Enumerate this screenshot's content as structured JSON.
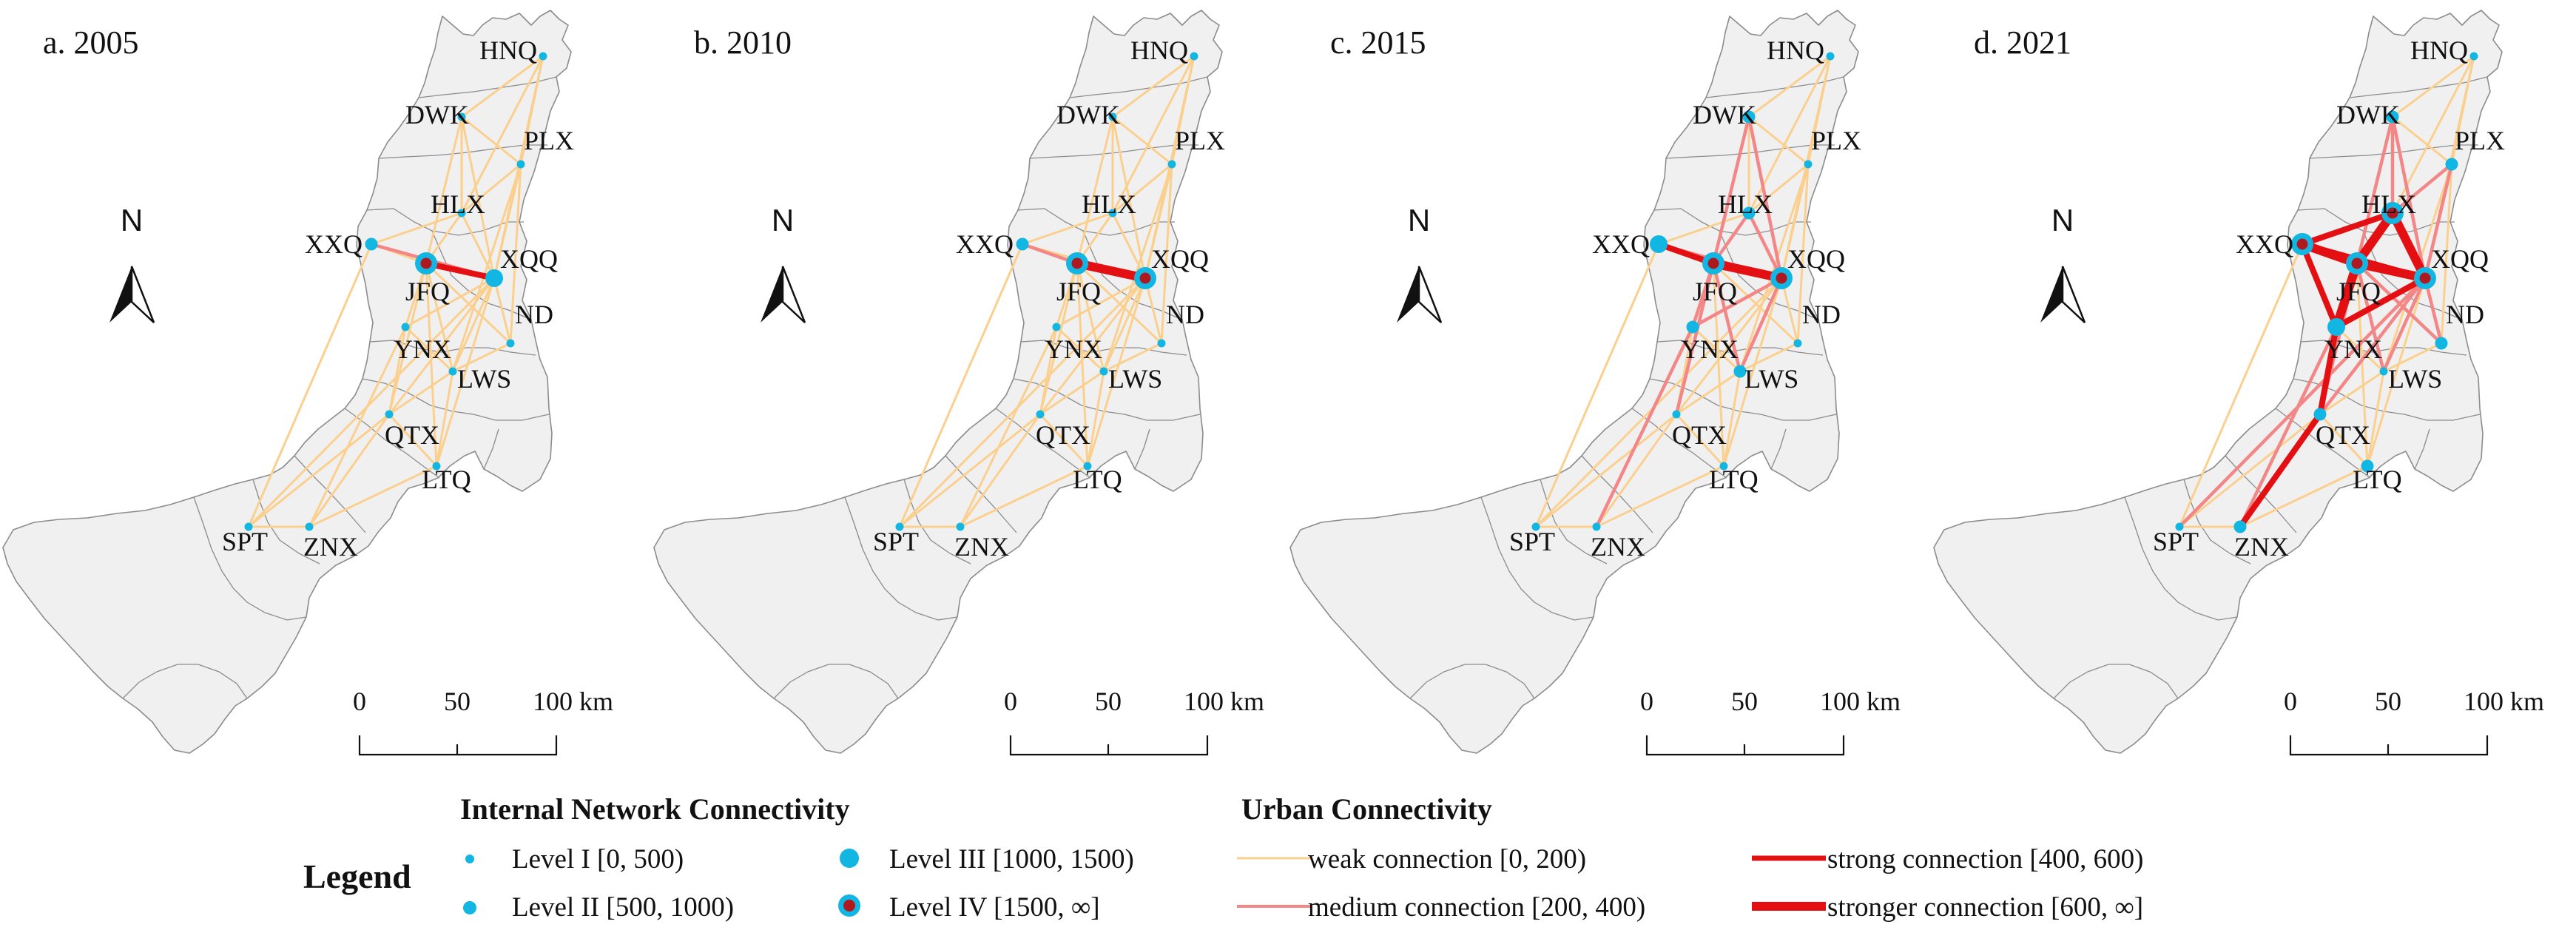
{
  "panels": [
    {
      "title": "a. 2005",
      "edges": [
        [
          "HNQ",
          "DWK",
          1
        ],
        [
          "HNQ",
          "PLX",
          1
        ],
        [
          "HNQ",
          "HLX",
          1
        ],
        [
          "HNQ",
          "XQQ",
          1
        ],
        [
          "DWK",
          "PLX",
          1
        ],
        [
          "DWK",
          "HLX",
          1
        ],
        [
          "DWK",
          "XQQ",
          1
        ],
        [
          "DWK",
          "JFQ",
          1
        ],
        [
          "PLX",
          "HLX",
          1
        ],
        [
          "PLX",
          "XQQ",
          1
        ],
        [
          "PLX",
          "ND",
          1
        ],
        [
          "PLX",
          "LWS",
          1
        ],
        [
          "HLX",
          "XQQ",
          1
        ],
        [
          "HLX",
          "JFQ",
          1
        ],
        [
          "HLX",
          "XXQ",
          1
        ],
        [
          "XXQ",
          "JFQ",
          1
        ],
        [
          "XXQ",
          "SPT",
          1
        ],
        [
          "JFQ",
          "XQQ",
          3
        ],
        [
          "JFQ",
          "YNX",
          1
        ],
        [
          "JFQ",
          "ND",
          1
        ],
        [
          "JFQ",
          "LWS",
          1
        ],
        [
          "JFQ",
          "QTX",
          1
        ],
        [
          "XQQ",
          "ND",
          1
        ],
        [
          "XQQ",
          "YNX",
          1
        ],
        [
          "XQQ",
          "LWS",
          1
        ],
        [
          "XQQ",
          "QTX",
          1
        ],
        [
          "XQQ",
          "LTQ",
          1
        ],
        [
          "XQQ",
          "SPT",
          1
        ],
        [
          "YNX",
          "LWS",
          1
        ],
        [
          "YNX",
          "QTX",
          1
        ],
        [
          "YNX",
          "ZNX",
          1
        ],
        [
          "LWS",
          "QTX",
          1
        ],
        [
          "LWS",
          "LTQ",
          1
        ],
        [
          "LWS",
          "ND",
          1
        ],
        [
          "QTX",
          "LTQ",
          1
        ],
        [
          "QTX",
          "ZNX",
          1
        ],
        [
          "QTX",
          "SPT",
          1
        ],
        [
          "LTQ",
          "ZNX",
          1
        ],
        [
          "ZNX",
          "SPT",
          1
        ],
        [
          "JFQ",
          "LTQ",
          1
        ],
        [
          "XXQ",
          "XQQ",
          2
        ]
      ],
      "levels": {
        "HNQ": 1,
        "DWK": 1,
        "PLX": 1,
        "HLX": 1,
        "XXQ": 2,
        "JFQ": 4,
        "XQQ": 3,
        "ND": 1,
        "YNX": 1,
        "LWS": 1,
        "QTX": 1,
        "LTQ": 1,
        "SPT": 1,
        "ZNX": 1
      }
    },
    {
      "title": "b. 2010",
      "edges": [
        [
          "HNQ",
          "DWK",
          1
        ],
        [
          "HNQ",
          "PLX",
          1
        ],
        [
          "HNQ",
          "HLX",
          1
        ],
        [
          "HNQ",
          "XQQ",
          1
        ],
        [
          "DWK",
          "PLX",
          1
        ],
        [
          "DWK",
          "HLX",
          1
        ],
        [
          "DWK",
          "XQQ",
          1
        ],
        [
          "DWK",
          "JFQ",
          1
        ],
        [
          "PLX",
          "HLX",
          1
        ],
        [
          "PLX",
          "XQQ",
          1
        ],
        [
          "PLX",
          "ND",
          1
        ],
        [
          "PLX",
          "LWS",
          1
        ],
        [
          "HLX",
          "XQQ",
          1
        ],
        [
          "HLX",
          "JFQ",
          1
        ],
        [
          "HLX",
          "XXQ",
          1
        ],
        [
          "XXQ",
          "JFQ",
          2
        ],
        [
          "XXQ",
          "SPT",
          1
        ],
        [
          "JFQ",
          "XQQ",
          4
        ],
        [
          "JFQ",
          "YNX",
          1
        ],
        [
          "JFQ",
          "ND",
          1
        ],
        [
          "JFQ",
          "LWS",
          1
        ],
        [
          "JFQ",
          "QTX",
          1
        ],
        [
          "XQQ",
          "ND",
          1
        ],
        [
          "XQQ",
          "YNX",
          1
        ],
        [
          "XQQ",
          "LWS",
          1
        ],
        [
          "XQQ",
          "QTX",
          1
        ],
        [
          "XQQ",
          "LTQ",
          1
        ],
        [
          "XQQ",
          "SPT",
          1
        ],
        [
          "YNX",
          "LWS",
          1
        ],
        [
          "YNX",
          "QTX",
          1
        ],
        [
          "YNX",
          "ZNX",
          1
        ],
        [
          "LWS",
          "QTX",
          1
        ],
        [
          "LWS",
          "LTQ",
          1
        ],
        [
          "LWS",
          "ND",
          1
        ],
        [
          "QTX",
          "LTQ",
          1
        ],
        [
          "QTX",
          "ZNX",
          1
        ],
        [
          "QTX",
          "SPT",
          1
        ],
        [
          "LTQ",
          "ZNX",
          1
        ],
        [
          "ZNX",
          "SPT",
          1
        ],
        [
          "JFQ",
          "LTQ",
          1
        ],
        [
          "XXQ",
          "XQQ",
          1
        ]
      ],
      "levels": {
        "HNQ": 1,
        "DWK": 1,
        "PLX": 1,
        "HLX": 1,
        "XXQ": 2,
        "JFQ": 4,
        "XQQ": 4,
        "ND": 1,
        "YNX": 1,
        "LWS": 1,
        "QTX": 1,
        "LTQ": 1,
        "SPT": 1,
        "ZNX": 1
      }
    },
    {
      "title": "c. 2015",
      "edges": [
        [
          "HNQ",
          "DWK",
          1
        ],
        [
          "HNQ",
          "PLX",
          1
        ],
        [
          "HNQ",
          "HLX",
          1
        ],
        [
          "HNQ",
          "XQQ",
          1
        ],
        [
          "DWK",
          "PLX",
          1
        ],
        [
          "DWK",
          "HLX",
          1
        ],
        [
          "DWK",
          "XQQ",
          2
        ],
        [
          "DWK",
          "JFQ",
          2
        ],
        [
          "PLX",
          "HLX",
          1
        ],
        [
          "PLX",
          "XQQ",
          1
        ],
        [
          "PLX",
          "ND",
          1
        ],
        [
          "PLX",
          "LWS",
          1
        ],
        [
          "HLX",
          "XQQ",
          2
        ],
        [
          "HLX",
          "JFQ",
          2
        ],
        [
          "HLX",
          "XXQ",
          1
        ],
        [
          "XXQ",
          "JFQ",
          3
        ],
        [
          "XXQ",
          "SPT",
          1
        ],
        [
          "JFQ",
          "XQQ",
          4
        ],
        [
          "JFQ",
          "YNX",
          2
        ],
        [
          "JFQ",
          "ND",
          1
        ],
        [
          "JFQ",
          "LWS",
          2
        ],
        [
          "JFQ",
          "QTX",
          2
        ],
        [
          "XQQ",
          "ND",
          1
        ],
        [
          "XQQ",
          "YNX",
          2
        ],
        [
          "XQQ",
          "LWS",
          2
        ],
        [
          "XQQ",
          "QTX",
          1
        ],
        [
          "XQQ",
          "LTQ",
          1
        ],
        [
          "XQQ",
          "SPT",
          1
        ],
        [
          "YNX",
          "LWS",
          1
        ],
        [
          "YNX",
          "QTX",
          1
        ],
        [
          "YNX",
          "ZNX",
          2
        ],
        [
          "LWS",
          "QTX",
          1
        ],
        [
          "LWS",
          "LTQ",
          1
        ],
        [
          "LWS",
          "ND",
          1
        ],
        [
          "QTX",
          "LTQ",
          1
        ],
        [
          "QTX",
          "ZNX",
          1
        ],
        [
          "QTX",
          "SPT",
          1
        ],
        [
          "LTQ",
          "ZNX",
          1
        ],
        [
          "ZNX",
          "SPT",
          1
        ],
        [
          "JFQ",
          "LTQ",
          1
        ],
        [
          "XXQ",
          "XQQ",
          2
        ]
      ],
      "levels": {
        "HNQ": 1,
        "DWK": 2,
        "PLX": 1,
        "HLX": 2,
        "XXQ": 3,
        "JFQ": 4,
        "XQQ": 4,
        "ND": 1,
        "YNX": 2,
        "LWS": 2,
        "QTX": 1,
        "LTQ": 1,
        "SPT": 1,
        "ZNX": 1
      }
    },
    {
      "title": "d. 2021",
      "edges": [
        [
          "HNQ",
          "DWK",
          1
        ],
        [
          "HNQ",
          "PLX",
          1
        ],
        [
          "HNQ",
          "HLX",
          1
        ],
        [
          "HNQ",
          "XQQ",
          1
        ],
        [
          "DWK",
          "PLX",
          1
        ],
        [
          "DWK",
          "HLX",
          2
        ],
        [
          "DWK",
          "XQQ",
          2
        ],
        [
          "DWK",
          "JFQ",
          2
        ],
        [
          "PLX",
          "HLX",
          2
        ],
        [
          "PLX",
          "XQQ",
          2
        ],
        [
          "PLX",
          "ND",
          1
        ],
        [
          "PLX",
          "LWS",
          1
        ],
        [
          "HLX",
          "XQQ",
          4
        ],
        [
          "HLX",
          "JFQ",
          4
        ],
        [
          "HLX",
          "XXQ",
          3
        ],
        [
          "XXQ",
          "JFQ",
          4
        ],
        [
          "XXQ",
          "SPT",
          1
        ],
        [
          "JFQ",
          "XQQ",
          4
        ],
        [
          "JFQ",
          "YNX",
          4
        ],
        [
          "JFQ",
          "ND",
          2
        ],
        [
          "JFQ",
          "LWS",
          2
        ],
        [
          "JFQ",
          "QTX",
          2
        ],
        [
          "XQQ",
          "ND",
          2
        ],
        [
          "XQQ",
          "YNX",
          3
        ],
        [
          "XQQ",
          "LWS",
          2
        ],
        [
          "XQQ",
          "QTX",
          2
        ],
        [
          "XQQ",
          "LTQ",
          1
        ],
        [
          "XQQ",
          "SPT",
          2
        ],
        [
          "YNX",
          "LWS",
          1
        ],
        [
          "YNX",
          "QTX",
          3
        ],
        [
          "YNX",
          "ZNX",
          2
        ],
        [
          "LWS",
          "QTX",
          1
        ],
        [
          "LWS",
          "LTQ",
          1
        ],
        [
          "LWS",
          "ND",
          1
        ],
        [
          "QTX",
          "LTQ",
          1
        ],
        [
          "QTX",
          "ZNX",
          3
        ],
        [
          "QTX",
          "SPT",
          1
        ],
        [
          "LTQ",
          "ZNX",
          1
        ],
        [
          "ZNX",
          "SPT",
          1
        ],
        [
          "JFQ",
          "LTQ",
          1
        ],
        [
          "XXQ",
          "XQQ",
          3
        ],
        [
          "XXQ",
          "YNX",
          3
        ]
      ],
      "levels": {
        "HNQ": 1,
        "DWK": 2,
        "PLX": 2,
        "HLX": 4,
        "XXQ": 4,
        "JFQ": 4,
        "XQQ": 4,
        "ND": 2,
        "YNX": 3,
        "LWS": 1,
        "QTX": 2,
        "LTQ": 2,
        "SPT": 1,
        "ZNX": 2
      }
    }
  ],
  "towns": [
    "HNQ",
    "DWK",
    "PLX",
    "HLX",
    "XXQ",
    "JFQ",
    "XQQ",
    "ND",
    "YNX",
    "LWS",
    "QTX",
    "LTQ",
    "SPT",
    "ZNX"
  ],
  "scalebar": {
    "labels": [
      "0",
      "50",
      "100 km"
    ]
  },
  "north_label": "N",
  "colors": {
    "weak": "#fbd08f",
    "medium": "#f38686",
    "strong": "#e40f12",
    "node": "#12b6e3",
    "node_core": "#b0181f",
    "region_fill": "#f0f0f0",
    "region_stroke": "#8c8c8c"
  },
  "legend": {
    "title": "Legend",
    "node_header": "Internal Network Connectivity",
    "edge_header": "Urban Connectivity",
    "nodes": [
      "Level I [0, 500)",
      "Level II [500, 1000)",
      "Level III [1000, 1500)",
      "Level IV [1500, ∞]"
    ],
    "edges": [
      "weak connection [0, 200)",
      "medium connection [200, 400)",
      "strong connection [400, 600)",
      "stronger connection [600, ∞]"
    ]
  }
}
